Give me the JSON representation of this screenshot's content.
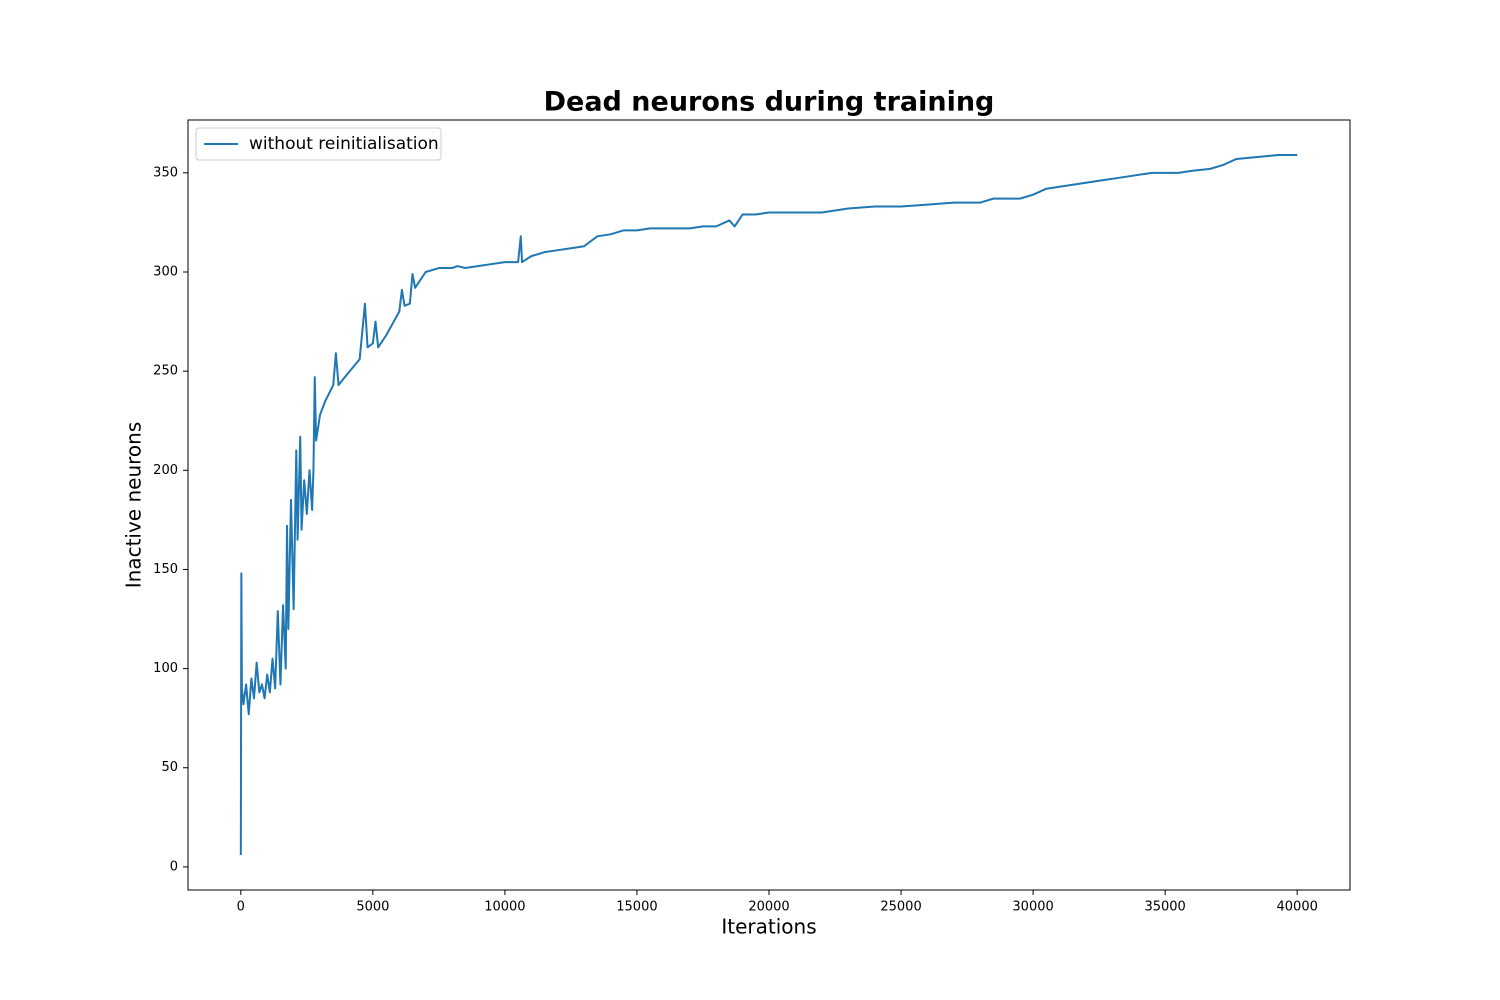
{
  "chart_data": {
    "type": "line",
    "title": "Dead neurons during training",
    "x_label": "Iterations",
    "y_label": "Inactive neurons",
    "x": [
      0,
      20,
      40,
      100,
      200,
      300,
      400,
      500,
      600,
      700,
      800,
      900,
      1000,
      1100,
      1200,
      1300,
      1400,
      1500,
      1600,
      1700,
      1750,
      1800,
      1900,
      2000,
      2100,
      2150,
      2250,
      2300,
      2400,
      2500,
      2600,
      2700,
      2750,
      2800,
      2850,
      3000,
      3200,
      3500,
      3600,
      3700,
      4000,
      4500,
      4700,
      4800,
      5000,
      5100,
      5200,
      5500,
      6000,
      6100,
      6200,
      6400,
      6500,
      6600,
      7000,
      7500,
      8000,
      8200,
      8500,
      9000,
      9500,
      10000,
      10500,
      10600,
      10650,
      11000,
      11500,
      12000,
      12500,
      13000,
      13500,
      14000,
      14500,
      15000,
      15500,
      16000,
      17000,
      17500,
      18000,
      18500,
      18700,
      19000,
      19500,
      20000,
      22000,
      23000,
      24000,
      25000,
      26000,
      27000,
      28000,
      28500,
      29500,
      30000,
      30500,
      31000,
      32000,
      32500,
      33500,
      34500,
      35500,
      36000,
      36700,
      37200,
      37700,
      38500,
      39300,
      40000
    ],
    "series": [
      {
        "name": "without reinitialisation",
        "color": "#1f77b4",
        "values": [
          6,
          148,
          90,
          82,
          92,
          77,
          95,
          85,
          103,
          88,
          92,
          85,
          97,
          88,
          105,
          90,
          129,
          92,
          132,
          100,
          172,
          120,
          185,
          130,
          210,
          165,
          217,
          170,
          195,
          178,
          200,
          180,
          200,
          247,
          215,
          228,
          235,
          243,
          259,
          243,
          248,
          256,
          284,
          262,
          264,
          275,
          262,
          268,
          280,
          291,
          283,
          284,
          299,
          292,
          300,
          302,
          302,
          303,
          302,
          303,
          304,
          305,
          305,
          318,
          305,
          308,
          310,
          311,
          312,
          313,
          318,
          319,
          321,
          321,
          322,
          322,
          322,
          323,
          323,
          326,
          323,
          329,
          329,
          330,
          330,
          332,
          333,
          333,
          334,
          335,
          335,
          337,
          337,
          339,
          342,
          343,
          345,
          346,
          348,
          350,
          350,
          351,
          352,
          354,
          357,
          358,
          359,
          359
        ]
      }
    ],
    "xlim": [
      -2000,
      42000
    ],
    "ylim": [
      -11.65,
      376.65
    ],
    "xticks": [
      0,
      5000,
      10000,
      15000,
      20000,
      25000,
      30000,
      35000,
      40000
    ],
    "yticks": [
      0,
      50,
      100,
      150,
      200,
      250,
      300,
      350
    ],
    "grid": false,
    "legend": "upper left"
  }
}
